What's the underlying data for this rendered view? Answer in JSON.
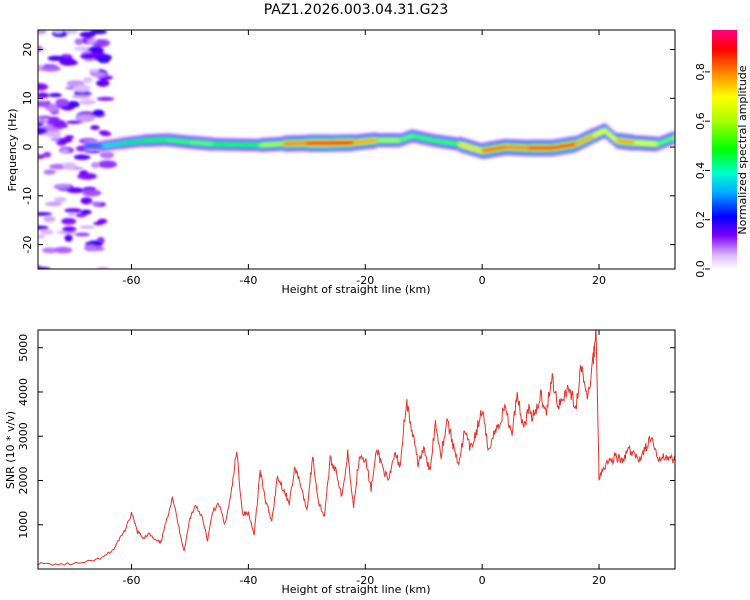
{
  "figure": {
    "title": "PAZ1.2026.003.04.31.G23"
  },
  "colorbar": {
    "label": "Normalized spectral amplitude",
    "ticks": [
      "0.0",
      "0.2",
      "0.4",
      "0.6",
      "0.8"
    ],
    "tick_values": [
      0.0,
      0.2,
      0.4,
      0.6,
      0.8
    ],
    "range": [
      0.0,
      0.97
    ]
  },
  "chart_data": [
    {
      "type": "heatmap",
      "title": "PAZ1.2026.003.04.31.G23",
      "xlabel": "Height of straight line (km)",
      "ylabel": "Frequency (Hz)",
      "xlim": [
        -76,
        33
      ],
      "ylim": [
        -25,
        24
      ],
      "x_ticks": [
        -60,
        -40,
        -20,
        0,
        20
      ],
      "x_tick_labels": [
        "-60",
        "-40",
        "-20",
        "0",
        "20"
      ],
      "y_ticks": [
        -20,
        -10,
        0,
        10,
        20
      ],
      "y_tick_labels": [
        "-20",
        "-10",
        "0",
        "10",
        "20"
      ],
      "ridge": {
        "x": [
          -68,
          -65,
          -62,
          -58,
          -54,
          -50,
          -46,
          -42,
          -38,
          -34,
          -30,
          -26,
          -22,
          -18,
          -14,
          -12,
          -8,
          -4,
          0,
          4,
          8,
          12,
          16,
          19,
          21,
          23,
          26,
          30,
          33
        ],
        "freq_hz": [
          0.3,
          0.2,
          0.7,
          1.3,
          1.5,
          1.0,
          0.6,
          0.5,
          0.4,
          0.7,
          0.8,
          0.8,
          0.9,
          1.4,
          1.4,
          2.3,
          1.3,
          0.6,
          -0.8,
          0.0,
          -0.2,
          -0.2,
          0.6,
          2.3,
          3.4,
          1.3,
          0.9,
          0.6,
          2.0
        ],
        "amplitude": [
          0.15,
          0.45,
          0.35,
          0.55,
          0.5,
          0.6,
          0.55,
          0.5,
          0.55,
          0.7,
          0.95,
          0.95,
          0.9,
          0.7,
          0.55,
          0.6,
          0.5,
          0.6,
          0.9,
          0.8,
          0.85,
          0.9,
          0.85,
          0.75,
          0.7,
          0.75,
          0.85,
          0.55,
          0.6
        ]
      },
      "noise_region_x": [
        -76,
        -64
      ]
    },
    {
      "type": "line",
      "title": "",
      "xlabel": "Height of straight line (km)",
      "ylabel": "SNR (10 * v/v)",
      "xlim": [
        -76,
        33
      ],
      "ylim": [
        0,
        5400
      ],
      "x_ticks": [
        -60,
        -40,
        -20,
        0,
        20
      ],
      "x_tick_labels": [
        "-60",
        "-40",
        "-20",
        "0",
        "20"
      ],
      "y_ticks": [
        1000,
        2000,
        3000,
        4000,
        5000
      ],
      "y_tick_labels": [
        "1000",
        "2000",
        "3000",
        "4000",
        "5000"
      ],
      "series": [
        {
          "name": "SNR",
          "color": "#e8322c",
          "x": [
            -76,
            -72,
            -68,
            -65,
            -63,
            -62,
            -61,
            -60,
            -59,
            -58,
            -57,
            -56,
            -55,
            -54,
            -53,
            -52,
            -51,
            -50,
            -49,
            -48,
            -47,
            -46,
            -45,
            -44,
            -43,
            -42,
            -41,
            -40,
            -39,
            -38,
            -37,
            -36,
            -35,
            -34,
            -33,
            -32,
            -31,
            -30,
            -29,
            -28,
            -27,
            -26,
            -25,
            -24,
            -23,
            -22,
            -21,
            -20,
            -19,
            -18,
            -17,
            -16,
            -15,
            -14,
            -13,
            -12,
            -11,
            -10,
            -9,
            -8,
            -7,
            -6,
            -5,
            -4,
            -3,
            -2,
            -1,
            0,
            1,
            2,
            3,
            4,
            5,
            6,
            7,
            8,
            9,
            10,
            11,
            12,
            13,
            14,
            15,
            16,
            17,
            18,
            19,
            19.5,
            20,
            21,
            22,
            23,
            24,
            25,
            26,
            27,
            28,
            29,
            30,
            31,
            32,
            33
          ],
          "values": [
            120,
            100,
            140,
            250,
            450,
            700,
            900,
            1250,
            850,
            700,
            800,
            650,
            600,
            1100,
            1650,
            1000,
            400,
            1150,
            1450,
            1200,
            650,
            1350,
            1450,
            1000,
            1650,
            2650,
            1250,
            1250,
            800,
            2200,
            1500,
            1100,
            2100,
            1800,
            1500,
            2300,
            1900,
            1300,
            2550,
            1500,
            1200,
            2450,
            2250,
            1600,
            2650,
            1400,
            2600,
            2500,
            1800,
            2700,
            2300,
            1950,
            2600,
            2350,
            3800,
            3100,
            2400,
            2700,
            2200,
            3300,
            2600,
            3400,
            2800,
            2400,
            3100,
            2700,
            3100,
            3600,
            2700,
            3050,
            3300,
            3700,
            3000,
            4000,
            3200,
            3600,
            3400,
            3950,
            3600,
            4300,
            3700,
            3950,
            4100,
            3600,
            4600,
            3800,
            4750,
            5350,
            2100,
            2350,
            2450,
            2550,
            2400,
            2700,
            2550,
            2500,
            2750,
            2950,
            2450,
            2600,
            2500,
            2450
          ]
        }
      ]
    }
  ]
}
